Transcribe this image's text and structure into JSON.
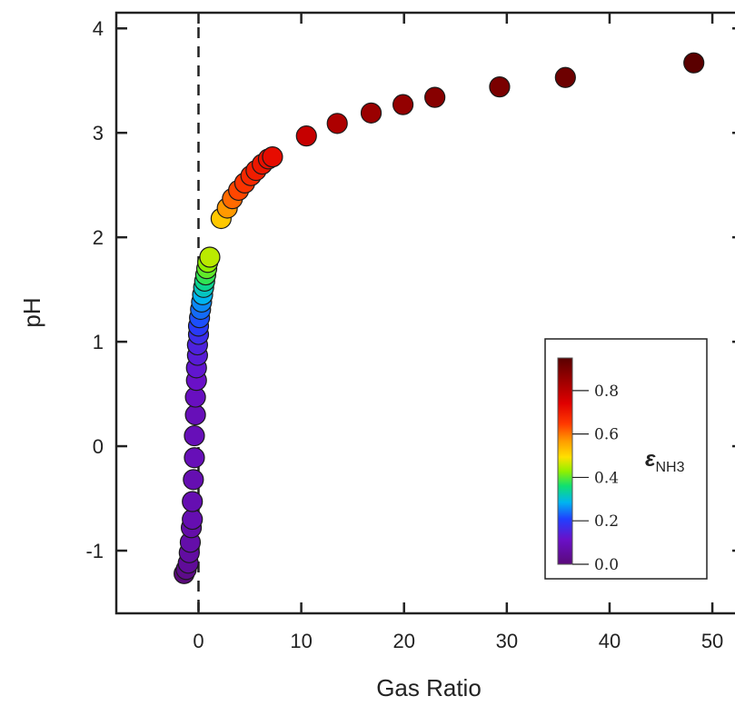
{
  "chart_data": {
    "type": "scatter",
    "title": "",
    "xlabel": "Gas Ratio",
    "ylabel": "pH",
    "xlim": [
      -8,
      53
    ],
    "ylim": [
      -1.6,
      4.15
    ],
    "x_ticks": [
      0,
      10,
      20,
      30,
      40,
      50
    ],
    "x_tick_labels": [
      "0",
      "10",
      "20",
      "30",
      "40",
      "50"
    ],
    "y_ticks": [
      -1,
      0,
      1,
      2,
      3,
      4
    ],
    "y_tick_labels": [
      "-1",
      "0",
      "1",
      "2",
      "3",
      "4"
    ],
    "grid": false,
    "reference_line": {
      "x": 0,
      "style": "dashed"
    },
    "colorbar": {
      "title": "ε",
      "subscript": "NH3",
      "range": [
        0,
        0.95
      ],
      "ticks": [
        0.0,
        0.2,
        0.4,
        0.6,
        0.8
      ],
      "tick_labels": [
        "0.0",
        "0.2",
        "0.4",
        "0.6",
        "0.8"
      ],
      "colormap": "rainbow",
      "placement": "lower-right"
    },
    "points": [
      {
        "x": -1.4,
        "y": -1.22,
        "c": 0.0
      },
      {
        "x": -1.2,
        "y": -1.18,
        "c": 0.02
      },
      {
        "x": -1.0,
        "y": -1.12,
        "c": 0.04
      },
      {
        "x": -0.9,
        "y": -1.02,
        "c": 0.05
      },
      {
        "x": -0.8,
        "y": -0.92,
        "c": 0.06
      },
      {
        "x": -0.7,
        "y": -0.78,
        "c": 0.06
      },
      {
        "x": -0.6,
        "y": -0.7,
        "c": 0.07
      },
      {
        "x": -0.6,
        "y": -0.53,
        "c": 0.07
      },
      {
        "x": -0.5,
        "y": -0.32,
        "c": 0.07
      },
      {
        "x": -0.4,
        "y": -0.11,
        "c": 0.08
      },
      {
        "x": -0.4,
        "y": 0.1,
        "c": 0.08
      },
      {
        "x": -0.3,
        "y": 0.3,
        "c": 0.08
      },
      {
        "x": -0.3,
        "y": 0.47,
        "c": 0.09
      },
      {
        "x": -0.2,
        "y": 0.63,
        "c": 0.1
      },
      {
        "x": -0.2,
        "y": 0.75,
        "c": 0.11
      },
      {
        "x": -0.1,
        "y": 0.87,
        "c": 0.12
      },
      {
        "x": -0.1,
        "y": 0.97,
        "c": 0.13
      },
      {
        "x": 0.0,
        "y": 1.07,
        "c": 0.15
      },
      {
        "x": 0.0,
        "y": 1.15,
        "c": 0.17
      },
      {
        "x": 0.1,
        "y": 1.23,
        "c": 0.19
      },
      {
        "x": 0.2,
        "y": 1.31,
        "c": 0.21
      },
      {
        "x": 0.3,
        "y": 1.38,
        "c": 0.23
      },
      {
        "x": 0.4,
        "y": 1.45,
        "c": 0.26
      },
      {
        "x": 0.5,
        "y": 1.52,
        "c": 0.29
      },
      {
        "x": 0.6,
        "y": 1.58,
        "c": 0.32
      },
      {
        "x": 0.7,
        "y": 1.64,
        "c": 0.36
      },
      {
        "x": 0.8,
        "y": 1.7,
        "c": 0.39
      },
      {
        "x": 0.9,
        "y": 1.76,
        "c": 0.42
      },
      {
        "x": 1.1,
        "y": 1.81,
        "c": 0.45
      },
      {
        "x": 2.2,
        "y": 2.18,
        "c": 0.52
      },
      {
        "x": 2.8,
        "y": 2.28,
        "c": 0.56
      },
      {
        "x": 3.3,
        "y": 2.37,
        "c": 0.6
      },
      {
        "x": 3.9,
        "y": 2.45,
        "c": 0.63
      },
      {
        "x": 4.5,
        "y": 2.52,
        "c": 0.65
      },
      {
        "x": 5.1,
        "y": 2.59,
        "c": 0.67
      },
      {
        "x": 5.6,
        "y": 2.64,
        "c": 0.69
      },
      {
        "x": 6.2,
        "y": 2.7,
        "c": 0.7
      },
      {
        "x": 6.8,
        "y": 2.75,
        "c": 0.71
      },
      {
        "x": 7.2,
        "y": 2.77,
        "c": 0.72
      },
      {
        "x": 10.5,
        "y": 2.97,
        "c": 0.78
      },
      {
        "x": 13.5,
        "y": 3.09,
        "c": 0.82
      },
      {
        "x": 16.8,
        "y": 3.19,
        "c": 0.85
      },
      {
        "x": 19.9,
        "y": 3.27,
        "c": 0.86
      },
      {
        "x": 23.0,
        "y": 3.34,
        "c": 0.88
      },
      {
        "x": 29.3,
        "y": 3.44,
        "c": 0.9
      },
      {
        "x": 35.7,
        "y": 3.53,
        "c": 0.92
      },
      {
        "x": 48.2,
        "y": 3.67,
        "c": 0.95
      }
    ]
  }
}
